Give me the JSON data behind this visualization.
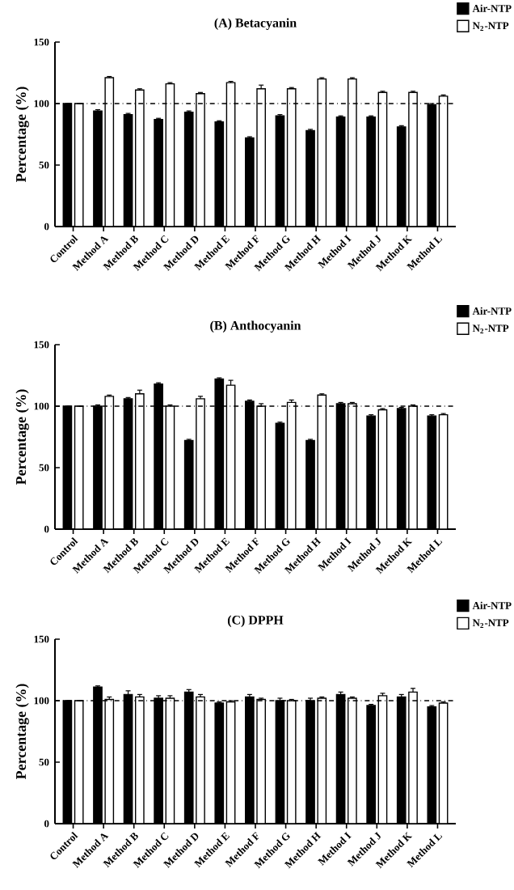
{
  "chart_data": [
    {
      "type": "bar",
      "title": "(A) Betacyanin",
      "ylabel": "Percentage (%)",
      "categories": [
        "Control",
        "Method A",
        "Method B",
        "Method C",
        "Method D",
        "Method E",
        "Method F",
        "Method G",
        "Method H",
        "Method I",
        "Method J",
        "Method K",
        "Method L"
      ],
      "series": [
        {
          "name": "Air-NTP",
          "color": "#000000",
          "values": [
            100,
            94,
            91,
            87,
            93,
            85,
            72,
            90,
            78,
            89,
            89,
            81,
            99
          ],
          "errors": [
            null,
            1,
            1,
            1,
            1,
            1,
            1,
            1,
            1,
            1,
            1,
            1,
            1
          ]
        },
        {
          "name": "N$_{2}$-NTP",
          "color": "#ffffff",
          "values": [
            100,
            121,
            111,
            116,
            108,
            117,
            112,
            112,
            120,
            120,
            109,
            109,
            106
          ],
          "errors": [
            null,
            1,
            1,
            1,
            1,
            1,
            3,
            1,
            1,
            1,
            1,
            1,
            1
          ]
        }
      ],
      "ylim": [
        0,
        150
      ],
      "yticks": [
        0,
        50,
        100,
        150
      ],
      "legend": "top right",
      "ref_lines": [
        {
          "axis": "y",
          "value": 100,
          "line_style": "dashdot",
          "color": "#000000"
        }
      ]
    },
    {
      "type": "bar",
      "title": "(B) Anthocyanin",
      "ylabel": "Percentage (%)",
      "categories": [
        "Control",
        "Method A",
        "Method B",
        "Method C",
        "Method D",
        "Method E",
        "Method F",
        "Method G",
        "Method H",
        "Method I",
        "Method J",
        "Method K",
        "Method L"
      ],
      "series": [
        {
          "name": "Air-NTP",
          "color": "#000000",
          "values": [
            100,
            100,
            106,
            118,
            72,
            122,
            104,
            86,
            72,
            102,
            92,
            98,
            92
          ],
          "errors": [
            null,
            1,
            1,
            1,
            1,
            1,
            1,
            1,
            1,
            1,
            1,
            1,
            1
          ]
        },
        {
          "name": "N$_{2}$-NTP",
          "color": "#ffffff",
          "values": [
            100,
            108,
            110,
            100,
            106,
            117,
            100,
            103,
            109,
            102,
            97,
            100,
            93
          ],
          "errors": [
            null,
            1,
            3,
            1,
            2,
            4,
            2,
            2,
            1,
            1,
            1,
            1,
            1
          ]
        }
      ],
      "ylim": [
        0,
        150
      ],
      "yticks": [
        0,
        50,
        100,
        150
      ],
      "legend": "top right",
      "ref_lines": [
        {
          "axis": "y",
          "value": 100,
          "line_style": "dashdot",
          "color": "#000000"
        }
      ]
    },
    {
      "type": "bar",
      "title": "(C) DPPH",
      "ylabel": "Percentage (%)",
      "categories": [
        "Control",
        "Method A",
        "Method B",
        "Method C",
        "Method D",
        "Method E",
        "Method F",
        "Method G",
        "Method H",
        "Method I",
        "Method J",
        "Method K",
        "Method L"
      ],
      "series": [
        {
          "name": "Air-NTP",
          "color": "#000000",
          "values": [
            100,
            111,
            105,
            102,
            107,
            98,
            103,
            100,
            100,
            105,
            96,
            103,
            95
          ],
          "errors": [
            null,
            1,
            3,
            2,
            2,
            1,
            2,
            2,
            2,
            2,
            1,
            2,
            1
          ]
        },
        {
          "name": "N$_{2}$-NTP",
          "color": "#ffffff",
          "values": [
            100,
            101,
            103,
            102,
            103,
            99,
            101,
            100,
            102,
            102,
            104,
            107,
            98
          ],
          "errors": [
            null,
            2,
            2,
            2,
            2,
            1,
            1,
            1,
            1,
            1,
            2,
            3,
            1
          ]
        }
      ],
      "ylim": [
        0,
        150
      ],
      "yticks": [
        0,
        50,
        100,
        150
      ],
      "legend": "top right",
      "ref_lines": [
        {
          "axis": "y",
          "value": 100,
          "line_style": "dashdot",
          "color": "#000000"
        }
      ]
    }
  ]
}
